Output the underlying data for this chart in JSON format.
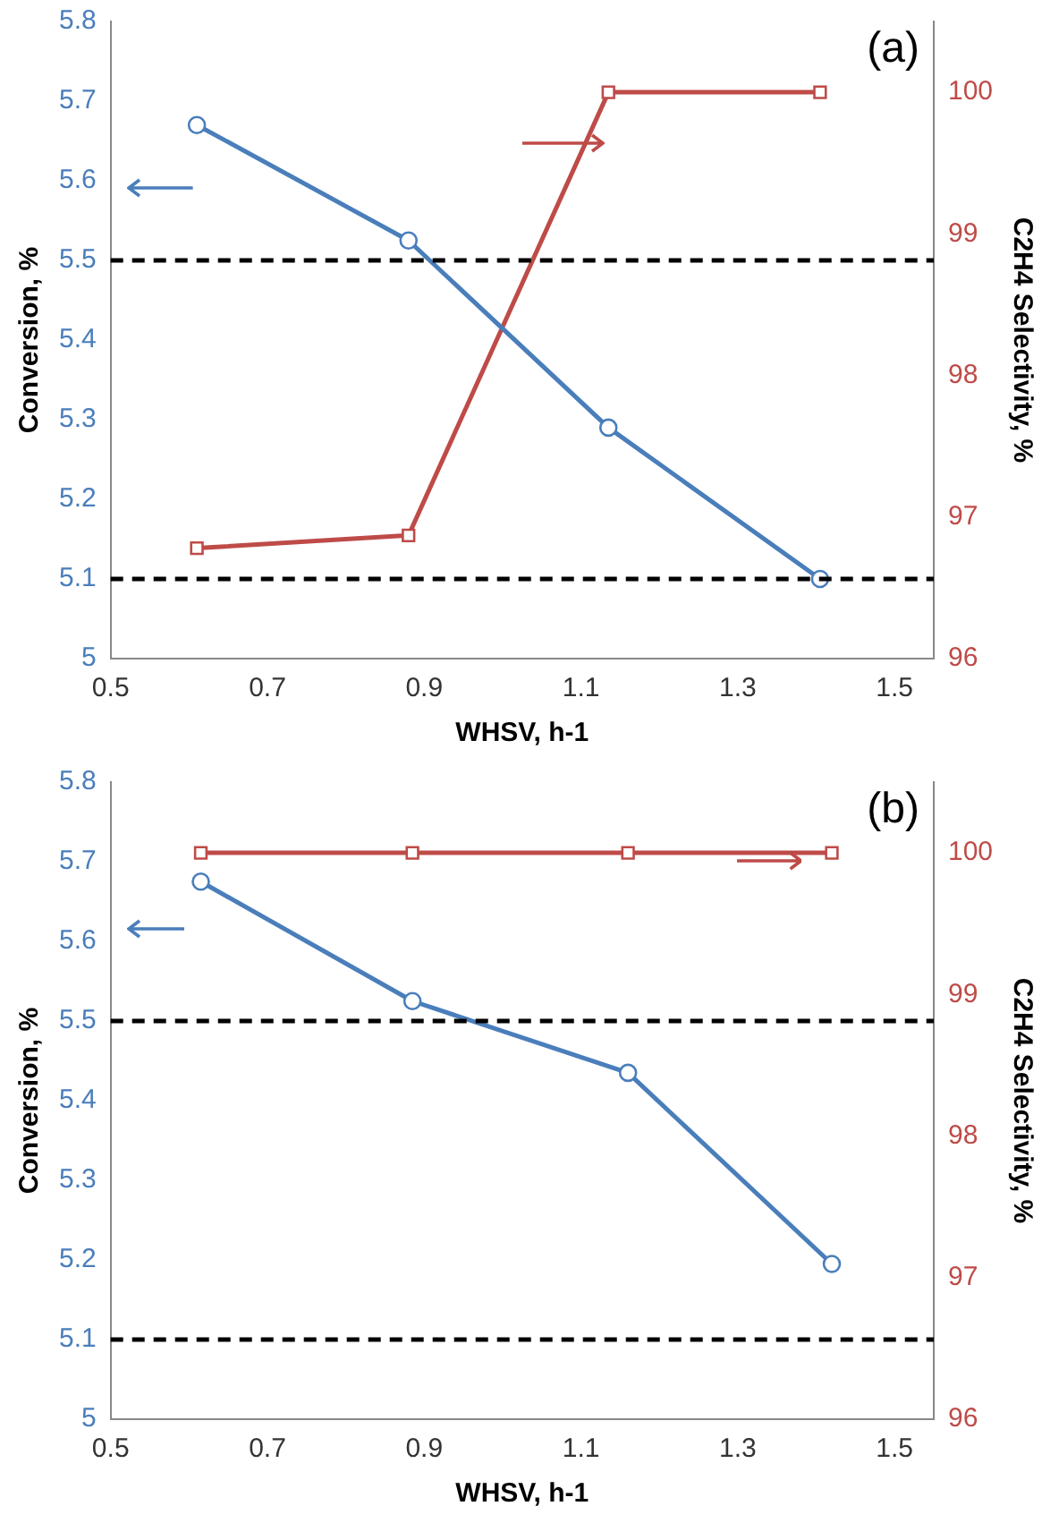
{
  "chart_data": [
    {
      "type": "line",
      "title": "(a)",
      "xlabel": "WHSV, h-1",
      "ylabel": "Conversion, %",
      "y2label": "C2H4 Selectivity, %",
      "xlim": [
        0.5,
        1.55
      ],
      "xticks": [
        0.5,
        0.7,
        0.9,
        1.1,
        1.3,
        1.5
      ],
      "ylim": [
        5,
        5.8
      ],
      "yticks": [
        5,
        5.1,
        5.2,
        5.3,
        5.4,
        5.5,
        5.6,
        5.7,
        5.8
      ],
      "y2lim": [
        96,
        100.5
      ],
      "y2ticks": [
        96,
        97,
        98,
        99,
        100
      ],
      "series": [
        {
          "color": "#4a7ebb",
          "marker": "circle",
          "x": [
            0.61,
            0.88,
            1.135,
            1.405
          ],
          "values": [
            5.67,
            5.525,
            5.29,
            5.1
          ]
        },
        {
          "color": "#be4b48",
          "marker": "square",
          "axis": "y2",
          "x": [
            0.61,
            0.88,
            1.135,
            1.405
          ],
          "values": [
            96.78,
            96.87,
            100,
            100
          ]
        }
      ],
      "ref_lines": [
        {
          "axis": "y",
          "value": 5.5,
          "color": "#000000",
          "line_style": "dashed"
        },
        {
          "axis": "y",
          "value": 5.1,
          "color": "#000000",
          "line_style": "dashed"
        }
      ],
      "grid": false,
      "legend": false
    },
    {
      "type": "line",
      "title": "(b)",
      "xlabel": "WHSV, h-1",
      "ylabel": "Conversion, %",
      "y2label": "C2H4 Selectivity, %",
      "xlim": [
        0.5,
        1.55
      ],
      "xticks": [
        0.5,
        0.7,
        0.9,
        1.1,
        1.3,
        1.5
      ],
      "ylim": [
        5,
        5.8
      ],
      "yticks": [
        5,
        5.1,
        5.2,
        5.3,
        5.4,
        5.5,
        5.6,
        5.7,
        5.8
      ],
      "y2lim": [
        96,
        100.5
      ],
      "y2ticks": [
        96,
        97,
        98,
        99,
        100
      ],
      "series": [
        {
          "color": "#4a7ebb",
          "marker": "circle",
          "x": [
            0.615,
            0.885,
            1.16,
            1.42
          ],
          "values": [
            5.675,
            5.525,
            5.435,
            5.195
          ]
        },
        {
          "color": "#be4b48",
          "marker": "square",
          "axis": "y2",
          "x": [
            0.615,
            0.885,
            1.16,
            1.42
          ],
          "values": [
            100,
            100,
            100,
            100
          ]
        }
      ],
      "ref_lines": [
        {
          "axis": "y",
          "value": 5.5,
          "color": "#000000",
          "line_style": "dashed"
        },
        {
          "axis": "y",
          "value": 5.1,
          "color": "#000000",
          "line_style": "dashed"
        }
      ],
      "grid": false,
      "legend": false
    }
  ]
}
